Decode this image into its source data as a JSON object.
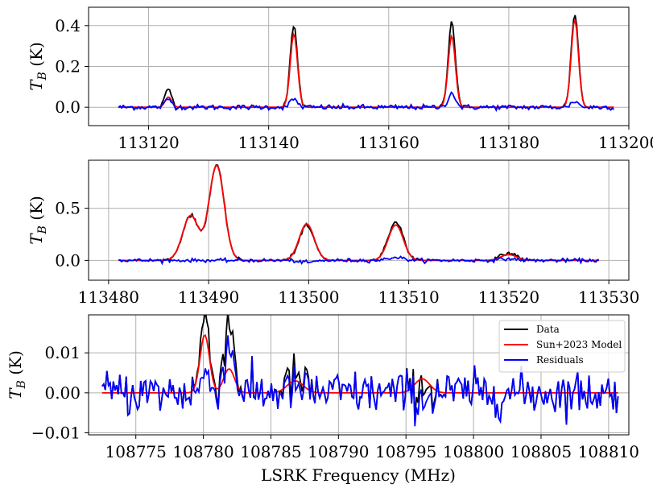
{
  "figure": {
    "legend": {
      "placement": "top-right",
      "entries": [
        "Data",
        "Sun+2023 Model",
        "Residuals"
      ]
    },
    "colors": {
      "data": "#000000",
      "model": "#ff0000",
      "residuals": "#0000ff"
    }
  },
  "chart_data": [
    {
      "type": "line",
      "ylabel": "T_B (K)",
      "xlabel": "",
      "xlim": [
        113110,
        113200
      ],
      "ylim": [
        -0.09,
        0.49
      ],
      "xticks": [
        113120,
        113140,
        113160,
        113180,
        113200
      ],
      "xtick_labels": [
        "113120",
        "113140",
        "113160",
        "113180",
        "113200"
      ],
      "yticks": [
        0.0,
        0.2,
        0.4
      ],
      "ytick_labels": [
        "0.0",
        "0.2",
        "0.4"
      ],
      "x_range": [
        113115,
        113197.5
      ],
      "grid": true,
      "lines": [
        {
          "center": 113123.3,
          "data_peak": 0.09,
          "model_peak": 0.05,
          "sigma": 0.55
        },
        {
          "center": 113144.2,
          "data_peak": 0.4,
          "model_peak": 0.36,
          "sigma": 0.6
        },
        {
          "center": 113170.5,
          "data_peak": 0.42,
          "model_peak": 0.35,
          "sigma": 0.6
        },
        {
          "center": 113191.0,
          "data_peak": 0.46,
          "model_peak": 0.43,
          "sigma": 0.6
        }
      ],
      "noise": 0.006
    },
    {
      "type": "line",
      "ylabel": "T_B (K)",
      "xlabel": "",
      "xlim": [
        113478,
        113532
      ],
      "ylim": [
        -0.19,
        0.96
      ],
      "xticks": [
        113480,
        113490,
        113500,
        113510,
        113520,
        113530
      ],
      "xtick_labels": [
        "113480",
        "113490",
        "113500",
        "113510",
        "113520",
        "113530"
      ],
      "yticks": [
        0.0,
        0.5
      ],
      "ytick_labels": [
        "0.0",
        "0.5"
      ],
      "x_range": [
        113481,
        113529
      ],
      "grid": true,
      "lines": [
        {
          "center": 113488.2,
          "data_peak": 0.43,
          "model_peak": 0.43,
          "sigma": 0.8
        },
        {
          "center": 113490.8,
          "data_peak": 0.91,
          "model_peak": 0.91,
          "sigma": 0.75
        },
        {
          "center": 113499.8,
          "data_peak": 0.33,
          "model_peak": 0.35,
          "sigma": 0.75
        },
        {
          "center": 113508.7,
          "data_peak": 0.37,
          "model_peak": 0.34,
          "sigma": 0.75
        },
        {
          "center": 113520.0,
          "data_peak": 0.07,
          "model_peak": 0.055,
          "sigma": 0.8
        }
      ],
      "noise": 0.008
    },
    {
      "type": "line",
      "ylabel": "T_B (K)",
      "xlabel": "LSRK Frequency (MHz)",
      "xlim": [
        108771.5,
        108811.5
      ],
      "ylim": [
        -0.0105,
        0.0195
      ],
      "xticks": [
        108775,
        108780,
        108785,
        108790,
        108795,
        108800,
        108805,
        108810
      ],
      "xtick_labels": [
        "108775",
        "108780",
        "108785",
        "108790",
        "108795",
        "108800",
        "108805",
        "108810"
      ],
      "yticks": [
        -0.01,
        0.0,
        0.01
      ],
      "ytick_labels": [
        "−0.01",
        "0.00",
        "0.01"
      ],
      "x_range": [
        108772.5,
        108810.7
      ],
      "grid": true,
      "lines": [
        {
          "center": 108780.1,
          "data_peak": 0.0185,
          "model_peak": 0.0145,
          "sigma": 0.35
        },
        {
          "center": 108781.9,
          "data_peak": 0.0175,
          "model_peak": 0.006,
          "sigma": 0.4
        },
        {
          "center": 108786.8,
          "data_peak": 0.004,
          "model_peak": 0.003,
          "sigma": 0.6
        },
        {
          "center": 108796.2,
          "data_peak": 0.002,
          "model_peak": 0.0035,
          "sigma": 0.55
        }
      ],
      "noise": 0.0028,
      "legend": [
        "Data",
        "Sun+2023 Model",
        "Residuals"
      ]
    }
  ]
}
